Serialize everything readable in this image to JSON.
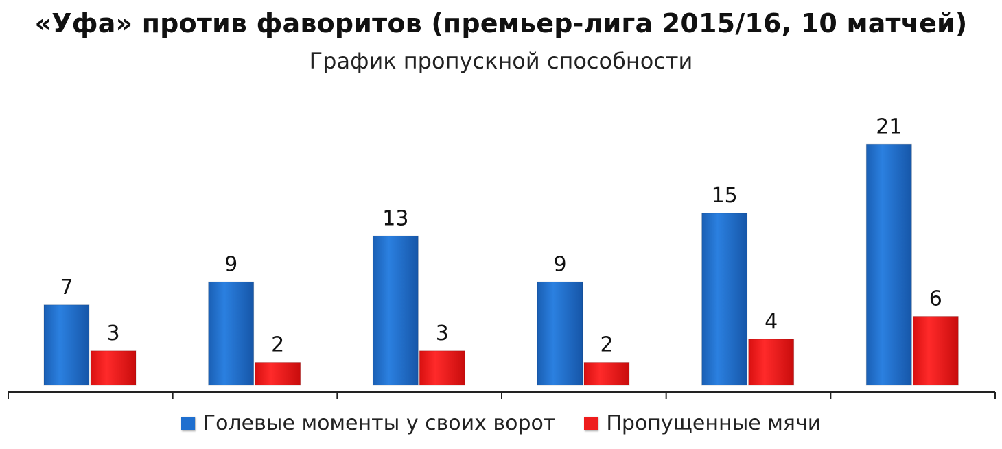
{
  "chart_data": {
    "type": "bar",
    "title": "«Уфа» против фаворитов (премьер-лига 2015/16, 10 матчей)",
    "subtitle": "График пропускной способности",
    "categories": [
      "",
      "",
      "",
      "",
      "",
      ""
    ],
    "series": [
      {
        "name": "Голевые моменты у своих ворот",
        "values": [
          7,
          9,
          13,
          9,
          15,
          21
        ],
        "color": "#1f6fcf"
      },
      {
        "name": "Пропущенные мячи",
        "values": [
          3,
          2,
          3,
          2,
          4,
          6
        ],
        "color": "#ee1c1c"
      }
    ],
    "data_labels": true,
    "ylim": [
      0,
      23
    ],
    "grid": false,
    "legend_position": "bottom-center"
  }
}
